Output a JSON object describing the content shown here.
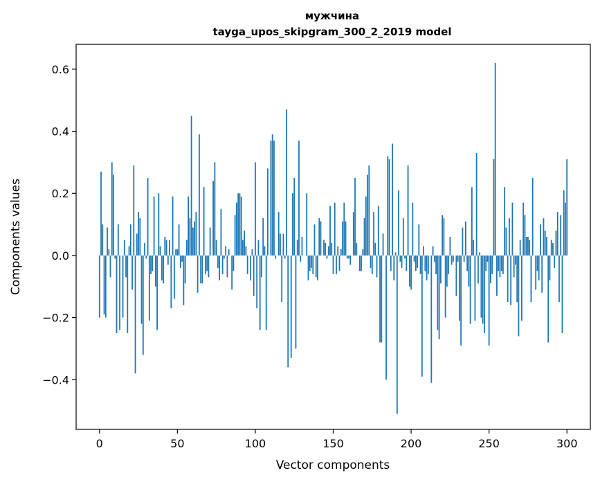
{
  "chart_data": {
    "type": "bar",
    "title": "мужчина",
    "subtitle": "tayga_upos_skipgram_300_2_2019 model",
    "xlabel": "Vector components",
    "ylabel": "Components values",
    "xlim": [
      -15,
      315
    ],
    "ylim": [
      -0.56,
      0.68
    ],
    "xticks": [
      0,
      50,
      100,
      150,
      200,
      250,
      300
    ],
    "xtick_labels": [
      "0",
      "50",
      "100",
      "150",
      "200",
      "250",
      "300"
    ],
    "yticks": [
      -0.4,
      -0.2,
      0.0,
      0.2,
      0.4,
      0.6
    ],
    "ytick_labels": [
      "−0.4",
      "−0.2",
      "0.0",
      "0.2",
      "0.4",
      "0.6"
    ],
    "grid": false,
    "bar_color": "#1f77b4",
    "x_start": 0,
    "values": [
      -0.2,
      0.27,
      0.1,
      -0.19,
      -0.2,
      0.09,
      0.02,
      -0.07,
      0.3,
      0.26,
      -0.01,
      -0.25,
      0.1,
      -0.24,
      0.0,
      -0.2,
      0.05,
      -0.07,
      -0.25,
      0.03,
      0.1,
      -0.11,
      0.29,
      -0.38,
      0.07,
      0.14,
      0.12,
      -0.22,
      -0.32,
      0.04,
      -0.01,
      0.25,
      -0.21,
      -0.06,
      -0.05,
      0.19,
      -0.1,
      -0.24,
      0.2,
      0.03,
      -0.08,
      -0.09,
      0.06,
      0.05,
      -0.03,
      0.05,
      -0.17,
      0.19,
      -0.14,
      0.02,
      0.02,
      0.1,
      -0.04,
      -0.02,
      -0.16,
      -0.09,
      0.05,
      0.19,
      0.12,
      0.45,
      0.09,
      0.11,
      0.14,
      -0.12,
      0.39,
      -0.09,
      -0.09,
      0.22,
      -0.06,
      -0.05,
      -0.07,
      0.09,
      0.0,
      0.24,
      0.3,
      0.05,
      -0.04,
      -0.08,
      0.15,
      -0.06,
      -0.01,
      0.03,
      -0.07,
      0.02,
      0.0,
      -0.11,
      -0.05,
      0.13,
      0.17,
      0.2,
      0.2,
      0.19,
      0.05,
      0.08,
      0.03,
      -0.06,
      0.0,
      -0.08,
      0.02,
      -0.13,
      0.3,
      -0.17,
      0.05,
      -0.24,
      -0.07,
      0.12,
      0.03,
      -0.24,
      0.28,
      0.0,
      0.37,
      0.39,
      0.37,
      -0.01,
      0.0,
      0.14,
      0.07,
      -0.15,
      0.07,
      -0.01,
      0.47,
      -0.36,
      0.0,
      -0.33,
      0.2,
      0.25,
      -0.3,
      0.05,
      0.37,
      -0.02,
      0.06,
      0.0,
      0.0,
      0.2,
      -0.08,
      -0.05,
      -0.04,
      -0.06,
      0.1,
      -0.07,
      -0.08,
      0.12,
      0.11,
      0.0,
      0.05,
      0.04,
      -0.01,
      0.03,
      0.16,
      0.04,
      -0.06,
      0.17,
      -0.06,
      0.03,
      -0.05,
      0.02,
      0.11,
      0.17,
      0.11,
      -0.01,
      -0.01,
      -0.03,
      0.0,
      0.14,
      0.25,
      0.04,
      0.0,
      -0.05,
      -0.05,
      0.02,
      0.12,
      0.19,
      0.26,
      0.29,
      -0.04,
      -0.06,
      0.14,
      0.04,
      -0.07,
      0.16,
      -0.28,
      -0.28,
      0.07,
      0.0,
      -0.4,
      0.32,
      0.31,
      -0.05,
      0.36,
      -0.08,
      0.01,
      -0.51,
      0.21,
      -0.02,
      -0.04,
      0.12,
      -0.01,
      -0.05,
      0.29,
      -0.1,
      -0.11,
      0.17,
      -0.02,
      -0.05,
      -0.04,
      0.1,
      -0.06,
      -0.39,
      0.03,
      -0.05,
      -0.08,
      -0.06,
      0.0,
      -0.41,
      0.03,
      -0.02,
      -0.06,
      -0.24,
      -0.27,
      -0.09,
      0.13,
      0.12,
      -0.2,
      -0.1,
      -0.06,
      0.06,
      -0.03,
      -0.02,
      0.0,
      -0.13,
      -0.02,
      -0.21,
      -0.29,
      0.09,
      -0.02,
      0.11,
      -0.05,
      -0.1,
      -0.22,
      0.22,
      0.05,
      -0.21,
      0.33,
      -0.09,
      0.01,
      -0.2,
      -0.22,
      -0.25,
      -0.05,
      -0.02,
      -0.29,
      -0.09,
      -0.06,
      0.31,
      0.62,
      -0.13,
      -0.05,
      -0.07,
      -0.05,
      -0.06,
      0.22,
      0.09,
      -0.15,
      0.12,
      -0.16,
      0.17,
      -0.07,
      -0.03,
      -0.15,
      -0.26,
      0.05,
      -0.21,
      0.17,
      0.13,
      0.06,
      0.06,
      0.05,
      -0.15,
      0.25,
      0.0,
      -0.11,
      -0.05,
      -0.08,
      0.1,
      -0.12,
      0.12,
      0.08,
      0.06,
      -0.28,
      -0.08,
      0.05,
      0.04,
      -0.04,
      0.08,
      0.14,
      -0.15,
      0.13,
      -0.25,
      0.21,
      0.17,
      0.31
    ]
  }
}
